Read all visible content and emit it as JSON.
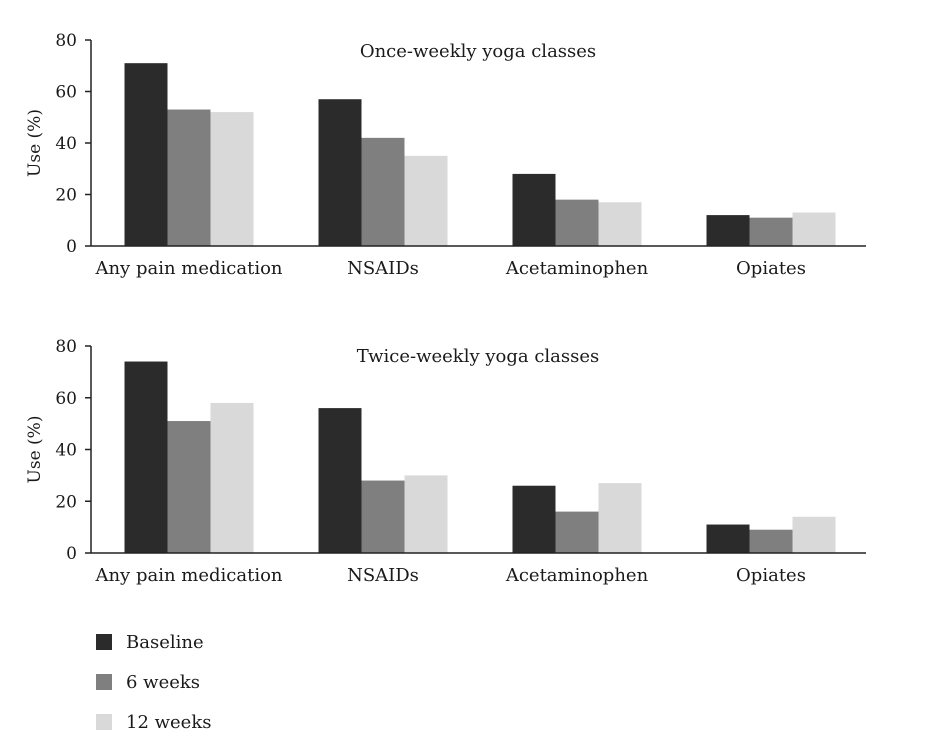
{
  "chart_data": [
    {
      "type": "bar",
      "title": "Once-weekly yoga classes",
      "ylabel": "Use (%)",
      "xlabel": "",
      "ylim": [
        0,
        80
      ],
      "yticks": [
        0,
        20,
        40,
        60,
        80
      ],
      "categories": [
        "Any pain medication",
        "NSAIDs",
        "Acetaminophen",
        "Opiates"
      ],
      "series": [
        {
          "name": "Baseline",
          "color": "#2b2b2b",
          "values": [
            71,
            57,
            28,
            12
          ]
        },
        {
          "name": "6 weeks",
          "color": "#7f7f7f",
          "values": [
            53,
            42,
            18,
            11
          ]
        },
        {
          "name": "12 weeks",
          "color": "#d9d9d9",
          "values": [
            52,
            35,
            17,
            13
          ]
        }
      ],
      "grid": false,
      "legend": "bottom-left"
    },
    {
      "type": "bar",
      "title": "Twice-weekly yoga classes",
      "ylabel": "Use (%)",
      "xlabel": "",
      "ylim": [
        0,
        80
      ],
      "yticks": [
        0,
        20,
        40,
        60,
        80
      ],
      "categories": [
        "Any pain medication",
        "NSAIDs",
        "Acetaminophen",
        "Opiates"
      ],
      "series": [
        {
          "name": "Baseline",
          "color": "#2b2b2b",
          "values": [
            74,
            56,
            26,
            11
          ]
        },
        {
          "name": "6 weeks",
          "color": "#7f7f7f",
          "values": [
            51,
            28,
            16,
            9
          ]
        },
        {
          "name": "12 weeks",
          "color": "#d9d9d9",
          "values": [
            58,
            30,
            27,
            14
          ]
        }
      ],
      "grid": false,
      "legend": "bottom-left"
    }
  ],
  "legend": {
    "items": [
      {
        "label": "Baseline",
        "color": "#2b2b2b"
      },
      {
        "label": "6 weeks",
        "color": "#7f7f7f"
      },
      {
        "label": "12 weeks",
        "color": "#d9d9d9"
      }
    ]
  }
}
